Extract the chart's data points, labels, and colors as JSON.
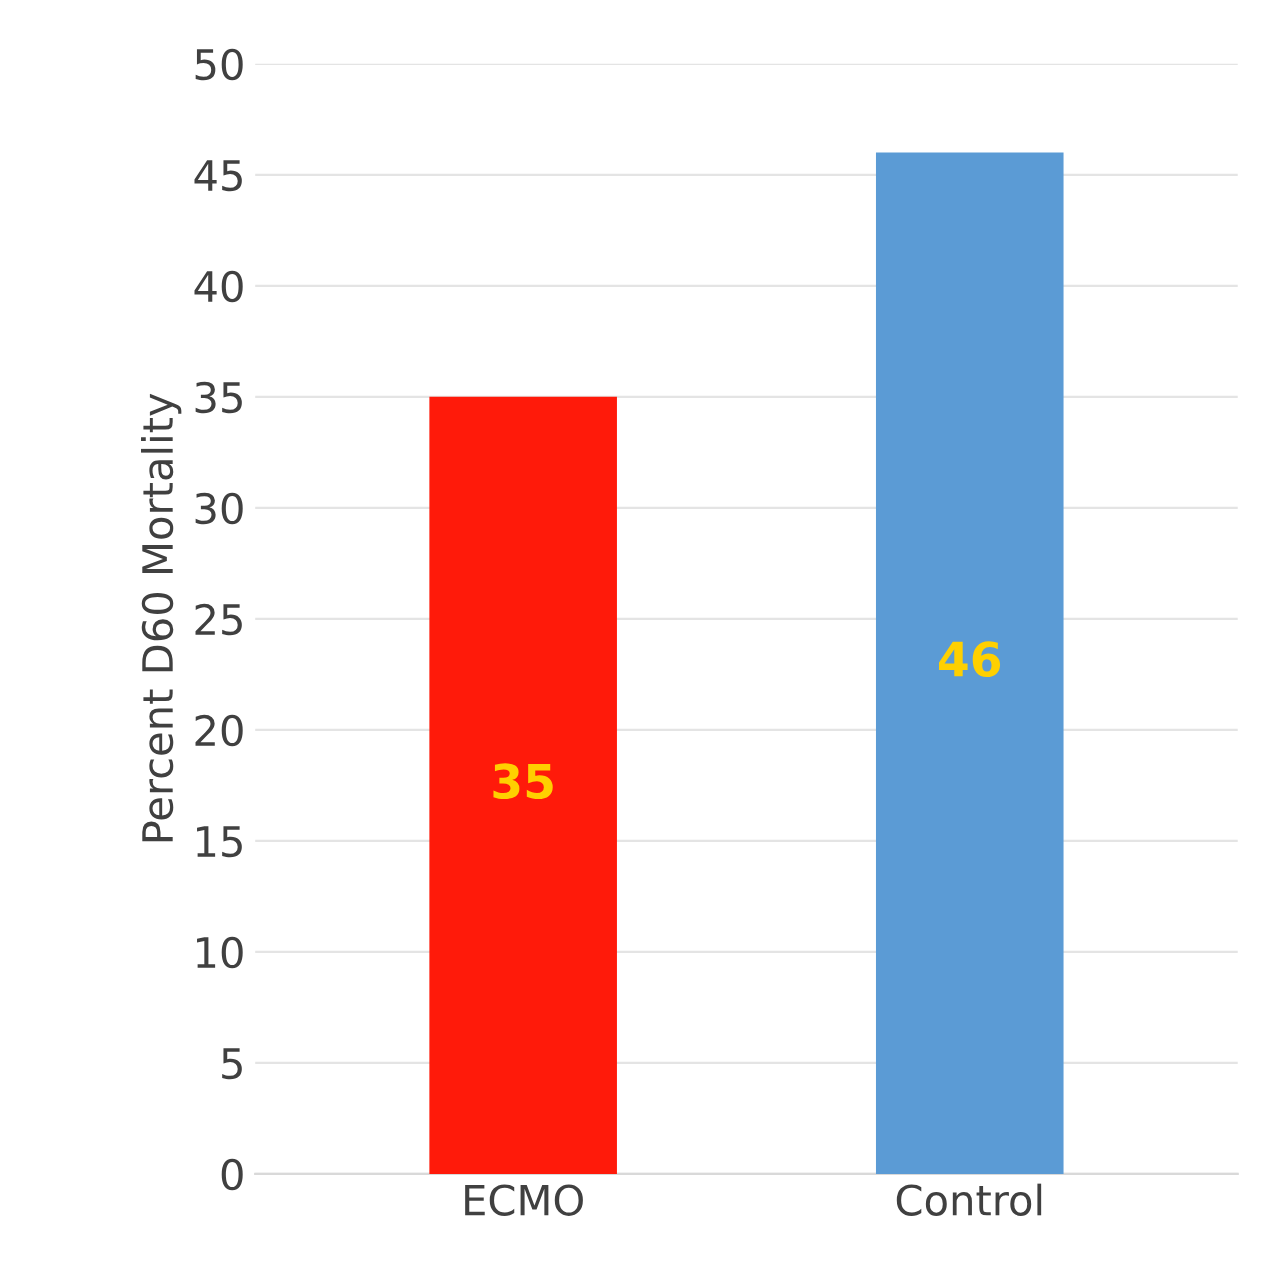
{
  "chart_data": {
    "type": "bar",
    "ylabel": "Percent D60 Mortality",
    "categories": [
      "ECMO",
      "Control"
    ],
    "values": [
      35,
      46
    ],
    "colors": [
      "#ff1a0a",
      "#5b9bd5"
    ],
    "ylim": [
      0,
      50
    ],
    "yticks": [
      0,
      5,
      10,
      15,
      20,
      25,
      30,
      35,
      40,
      45,
      50
    ],
    "grid": "y",
    "data_labels": true
  }
}
